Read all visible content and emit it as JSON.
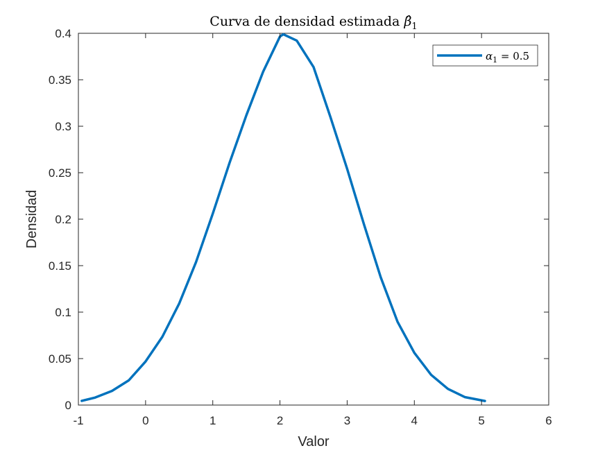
{
  "chart_data": {
    "type": "line",
    "title_prefix": "Curva de densidad estimada ",
    "title_symbol": "β̂",
    "title_subscript": "1",
    "xlabel": "Valor",
    "ylabel": "Densidad",
    "xlim": [
      -1,
      6
    ],
    "ylim": [
      0,
      0.4
    ],
    "xticks": [
      -1,
      0,
      1,
      2,
      3,
      4,
      5,
      6
    ],
    "xtick_labels": [
      "-1",
      "0",
      "1",
      "2",
      "3",
      "4",
      "5",
      "6"
    ],
    "yticks": [
      0,
      0.05,
      0.1,
      0.15,
      0.2,
      0.25,
      0.3,
      0.35,
      0.4
    ],
    "ytick_labels": [
      "0",
      "0.05",
      "0.1",
      "0.15",
      "0.2",
      "0.25",
      "0.3",
      "0.35",
      "0.4"
    ],
    "grid": false,
    "legend_position": "top-right",
    "legend": {
      "symbol": "α",
      "subscript": "1",
      "rest": " = 0.5"
    },
    "series": [
      {
        "color": "#0072BD",
        "x": [
          -0.95,
          -0.75,
          -0.5,
          -0.25,
          0.0,
          0.25,
          0.5,
          0.75,
          1.0,
          1.25,
          1.5,
          1.75,
          2.0,
          2.05,
          2.25,
          2.5,
          2.75,
          3.0,
          3.25,
          3.5,
          3.75,
          4.0,
          4.25,
          4.5,
          4.75,
          5.05
        ],
        "y": [
          0.0045,
          0.0081,
          0.0152,
          0.0266,
          0.0469,
          0.0735,
          0.1092,
          0.1537,
          0.2059,
          0.2607,
          0.3118,
          0.3588,
          0.3965,
          0.3989,
          0.3921,
          0.3637,
          0.3101,
          0.2541,
          0.1945,
          0.1374,
          0.0896,
          0.0562,
          0.0325,
          0.0174,
          0.0086,
          0.0044
        ]
      }
    ]
  }
}
